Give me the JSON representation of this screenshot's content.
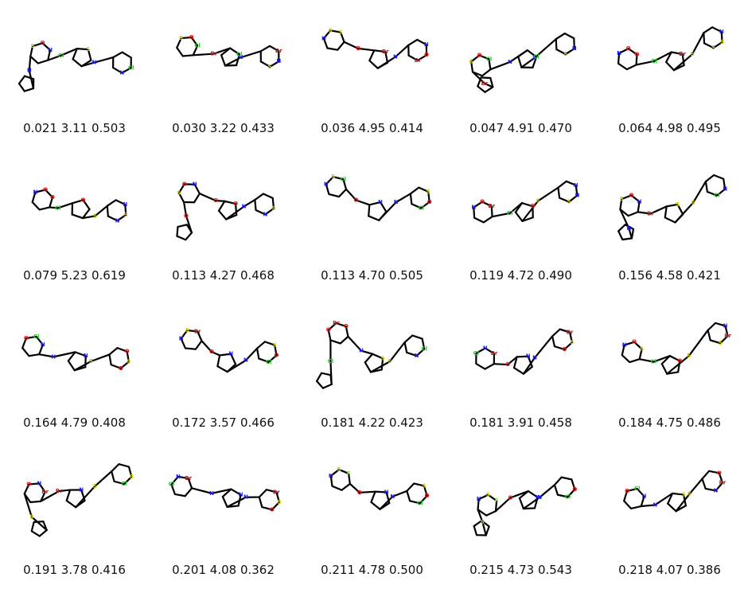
{
  "colors": {
    "bond": "#000000",
    "N": "#2020ff",
    "O": "#ff0d0d",
    "S": "#c8c800",
    "Cl": "#1fd01f",
    "Br": "#a62929",
    "F": "#90e050"
  },
  "molecules": [
    {
      "caption": "0.021 3.11 0.503",
      "atoms": [
        {
          "l": "Cl",
          "e": "Cl"
        },
        {
          "l": "N",
          "e": "N"
        },
        {
          "l": "S",
          "e": "S"
        },
        {
          "l": "O",
          "e": "O"
        },
        {
          "l": "Cl",
          "e": "Cl"
        },
        {
          "l": "N",
          "e": "N"
        },
        {
          "l": "S",
          "e": "S"
        },
        {
          "l": "N",
          "e": "N"
        },
        {
          "l": "N",
          "e": "N"
        }
      ]
    },
    {
      "caption": "0.030 3.22 0.433",
      "atoms": [
        {
          "l": "Br",
          "e": "Br"
        },
        {
          "l": "N",
          "e": "N"
        },
        {
          "l": "S",
          "e": "S"
        },
        {
          "l": "O",
          "e": "O"
        },
        {
          "l": "N",
          "e": "N"
        },
        {
          "l": "S",
          "e": "S"
        },
        {
          "l": "Cl",
          "e": "Cl"
        },
        {
          "l": "Br",
          "e": "Br"
        },
        {
          "l": "Cl",
          "e": "Cl"
        }
      ]
    },
    {
      "caption": "0.036 4.95 0.414",
      "atoms": [
        {
          "l": "O",
          "e": "O"
        },
        {
          "l": "N",
          "e": "N"
        },
        {
          "l": "N",
          "e": "N"
        },
        {
          "l": "S",
          "e": "S"
        },
        {
          "l": "O",
          "e": "O"
        },
        {
          "l": "Br",
          "e": "Br"
        },
        {
          "l": "Br",
          "e": "Br"
        },
        {
          "l": "N",
          "e": "N"
        },
        {
          "l": "S",
          "e": "S"
        }
      ]
    },
    {
      "caption": "0.047 4.91 0.470",
      "atoms": [
        {
          "l": "N",
          "e": "N"
        },
        {
          "l": "N",
          "e": "N"
        },
        {
          "l": "S",
          "e": "S"
        },
        {
          "l": "O",
          "e": "O"
        },
        {
          "l": "N",
          "e": "N"
        },
        {
          "l": "S",
          "e": "S"
        },
        {
          "l": "Cl",
          "e": "Cl"
        },
        {
          "l": "Br",
          "e": "Br"
        },
        {
          "l": "Cl",
          "e": "Cl"
        }
      ]
    },
    {
      "caption": "0.064 4.98 0.495",
      "atoms": [
        {
          "l": "Cl",
          "e": "Cl"
        },
        {
          "l": "S",
          "e": "S"
        },
        {
          "l": "N",
          "e": "N"
        },
        {
          "l": "O",
          "e": "O"
        },
        {
          "l": "S",
          "e": "S"
        },
        {
          "l": "S",
          "e": "S"
        },
        {
          "l": "Br",
          "e": "Br"
        },
        {
          "l": "N",
          "e": "N"
        },
        {
          "l": "O",
          "e": "O"
        }
      ]
    },
    {
      "caption": "0.079 5.23 0.619",
      "atoms": [
        {
          "l": "Cl",
          "e": "Cl"
        },
        {
          "l": "S",
          "e": "S"
        },
        {
          "l": "N",
          "e": "N"
        },
        {
          "l": "O",
          "e": "O"
        },
        {
          "l": "S",
          "e": "S"
        },
        {
          "l": "N",
          "e": "N"
        },
        {
          "l": "O",
          "e": "O"
        },
        {
          "l": "N",
          "e": "N"
        },
        {
          "l": "O",
          "e": "O"
        }
      ]
    },
    {
      "caption": "0.113 4.27 0.468",
      "atoms": [
        {
          "l": "O",
          "e": "O"
        },
        {
          "l": "N",
          "e": "N"
        },
        {
          "l": "S",
          "e": "S"
        },
        {
          "l": "O",
          "e": "O"
        },
        {
          "l": "S",
          "e": "S"
        },
        {
          "l": "N",
          "e": "N"
        },
        {
          "l": "O",
          "e": "O"
        },
        {
          "l": "O",
          "e": "O"
        },
        {
          "l": "N",
          "e": "N"
        }
      ]
    },
    {
      "caption": "0.113 4.70 0.505",
      "atoms": [
        {
          "l": "O",
          "e": "O"
        },
        {
          "l": "N",
          "e": "N"
        },
        {
          "l": "N",
          "e": "N"
        },
        {
          "l": "S",
          "e": "S"
        },
        {
          "l": "O",
          "e": "O"
        },
        {
          "l": "Cl",
          "e": "Cl"
        },
        {
          "l": "N",
          "e": "N"
        },
        {
          "l": "S",
          "e": "S"
        },
        {
          "l": "Cl",
          "e": "Cl"
        }
      ]
    },
    {
      "caption": "0.119 4.72 0.490",
      "atoms": [
        {
          "l": "Cl",
          "e": "Cl"
        },
        {
          "l": "S",
          "e": "S"
        },
        {
          "l": "N",
          "e": "N"
        },
        {
          "l": "O",
          "e": "O"
        },
        {
          "l": "N",
          "e": "N"
        },
        {
          "l": "S",
          "e": "S"
        },
        {
          "l": "O",
          "e": "O"
        },
        {
          "l": "N",
          "e": "N"
        },
        {
          "l": "Br",
          "e": "Br"
        }
      ]
    },
    {
      "caption": "0.156 4.58 0.421",
      "atoms": [
        {
          "l": "Br",
          "e": "Br"
        },
        {
          "l": "S",
          "e": "S"
        },
        {
          "l": "S",
          "e": "S"
        },
        {
          "l": "O",
          "e": "O"
        },
        {
          "l": "N",
          "e": "N"
        },
        {
          "l": "Cl",
          "e": "Cl"
        },
        {
          "l": "S",
          "e": "S"
        },
        {
          "l": "N",
          "e": "N"
        },
        {
          "l": "N",
          "e": "N"
        }
      ]
    },
    {
      "caption": "0.164 4.79 0.408",
      "atoms": [
        {
          "l": "N",
          "e": "N"
        },
        {
          "l": "S",
          "e": "S"
        },
        {
          "l": "O",
          "e": "O"
        },
        {
          "l": "Cl",
          "e": "Cl"
        },
        {
          "l": "S",
          "e": "S"
        },
        {
          "l": "O",
          "e": "O"
        },
        {
          "l": "N",
          "e": "N"
        },
        {
          "l": "O",
          "e": "O"
        },
        {
          "l": "N",
          "e": "N"
        }
      ]
    },
    {
      "caption": "0.172 3.57 0.466",
      "atoms": [
        {
          "l": "O",
          "e": "O"
        },
        {
          "l": "N",
          "e": "N"
        },
        {
          "l": "N",
          "e": "N"
        },
        {
          "l": "S",
          "e": "S"
        },
        {
          "l": "O",
          "e": "O"
        },
        {
          "l": "Cl",
          "e": "Cl"
        },
        {
          "l": "N",
          "e": "N"
        },
        {
          "l": "S",
          "e": "S"
        },
        {
          "l": "Br",
          "e": "Br"
        }
      ]
    },
    {
      "caption": "0.181 4.22 0.423",
      "atoms": [
        {
          "l": "N",
          "e": "N"
        },
        {
          "l": "S",
          "e": "S"
        },
        {
          "l": "O",
          "e": "O"
        },
        {
          "l": "Br",
          "e": "Br"
        },
        {
          "l": "Cl",
          "e": "Cl"
        },
        {
          "l": "N",
          "e": "N"
        },
        {
          "l": "S",
          "e": "S"
        },
        {
          "l": "Cl",
          "e": "Cl"
        },
        {
          "l": "O",
          "e": "O"
        }
      ]
    },
    {
      "caption": "0.181 3.91 0.458",
      "atoms": [
        {
          "l": "O",
          "e": "O"
        },
        {
          "l": "N",
          "e": "N"
        },
        {
          "l": "Cl",
          "e": "Cl"
        },
        {
          "l": "N",
          "e": "N"
        },
        {
          "l": "S",
          "e": "S"
        },
        {
          "l": "O",
          "e": "O"
        },
        {
          "l": "N",
          "e": "N"
        },
        {
          "l": "Br",
          "e": "Br"
        },
        {
          "l": "Br",
          "e": "Br"
        }
      ]
    },
    {
      "caption": "0.184 4.75 0.486",
      "atoms": [
        {
          "l": "Cl",
          "e": "Cl"
        },
        {
          "l": "S",
          "e": "S"
        },
        {
          "l": "N",
          "e": "N"
        },
        {
          "l": "O",
          "e": "O"
        },
        {
          "l": "Br",
          "e": "Br"
        },
        {
          "l": "S",
          "e": "S"
        },
        {
          "l": "O",
          "e": "O"
        },
        {
          "l": "N",
          "e": "N"
        },
        {
          "l": "S",
          "e": "S"
        }
      ]
    },
    {
      "caption": "0.191 3.78 0.416",
      "atoms": [
        {
          "l": "Br",
          "e": "Br"
        },
        {
          "l": "S",
          "e": "S"
        },
        {
          "l": "O",
          "e": "O"
        },
        {
          "l": "N",
          "e": "N"
        },
        {
          "l": "S",
          "e": "S"
        },
        {
          "l": "Cl",
          "e": "Cl"
        },
        {
          "l": "N",
          "e": "N"
        },
        {
          "l": "S",
          "e": "S"
        },
        {
          "l": "Br",
          "e": "Br"
        }
      ]
    },
    {
      "caption": "0.201 4.08 0.362",
      "atoms": [
        {
          "l": "N",
          "e": "N"
        },
        {
          "l": "N",
          "e": "N"
        },
        {
          "l": "Cl",
          "e": "Cl"
        },
        {
          "l": "N",
          "e": "N"
        },
        {
          "l": "S",
          "e": "S"
        },
        {
          "l": "O",
          "e": "O"
        },
        {
          "l": "N",
          "e": "N"
        },
        {
          "l": "Br",
          "e": "Br"
        },
        {
          "l": "Br",
          "e": "Br"
        }
      ]
    },
    {
      "caption": "0.211 4.78 0.500",
      "atoms": [
        {
          "l": "O",
          "e": "O"
        },
        {
          "l": "N",
          "e": "N"
        },
        {
          "l": "N",
          "e": "N"
        },
        {
          "l": "S",
          "e": "S"
        },
        {
          "l": "O",
          "e": "O"
        },
        {
          "l": "Cl",
          "e": "Cl"
        },
        {
          "l": "N",
          "e": "N"
        },
        {
          "l": "S",
          "e": "S"
        },
        {
          "l": "F",
          "e": "F"
        }
      ]
    },
    {
      "caption": "0.215 4.73 0.543",
      "atoms": [
        {
          "l": "O",
          "e": "O"
        },
        {
          "l": "N",
          "e": "N"
        },
        {
          "l": "N",
          "e": "N"
        },
        {
          "l": "S",
          "e": "S"
        },
        {
          "l": "O",
          "e": "O"
        },
        {
          "l": "Cl",
          "e": "Cl"
        },
        {
          "l": "N",
          "e": "N"
        },
        {
          "l": "S",
          "e": "S"
        },
        {
          "l": "F",
          "e": "F"
        }
      ]
    },
    {
      "caption": "0.218 4.07 0.386",
      "atoms": [
        {
          "l": "N",
          "e": "N"
        },
        {
          "l": "S",
          "e": "S"
        },
        {
          "l": "O",
          "e": "O"
        },
        {
          "l": "Cl",
          "e": "Cl"
        },
        {
          "l": "Br",
          "e": "Br"
        },
        {
          "l": "N",
          "e": "N"
        },
        {
          "l": "S",
          "e": "S"
        },
        {
          "l": "O",
          "e": "O"
        },
        {
          "l": "N",
          "e": "N"
        }
      ]
    }
  ]
}
